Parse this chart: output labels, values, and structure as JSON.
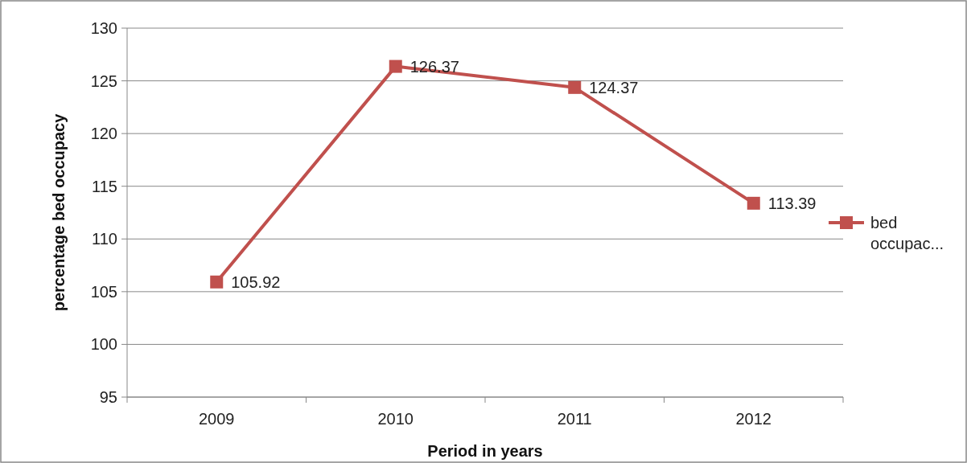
{
  "chart_data": {
    "type": "line",
    "xlabel": "Period in years",
    "ylabel": "percentage bed occupacy",
    "categories": [
      "2009",
      "2010",
      "2011",
      "2012"
    ],
    "series": [
      {
        "name": "bed occupac...",
        "color": "#c0504d",
        "values": [
          105.92,
          126.37,
          124.37,
          113.39
        ]
      }
    ],
    "ylim": [
      95,
      130
    ],
    "yticks": [
      95,
      100,
      105,
      110,
      115,
      120,
      125,
      130
    ],
    "grid": "y",
    "legend": "right",
    "marker": "square",
    "data_labels": true
  }
}
